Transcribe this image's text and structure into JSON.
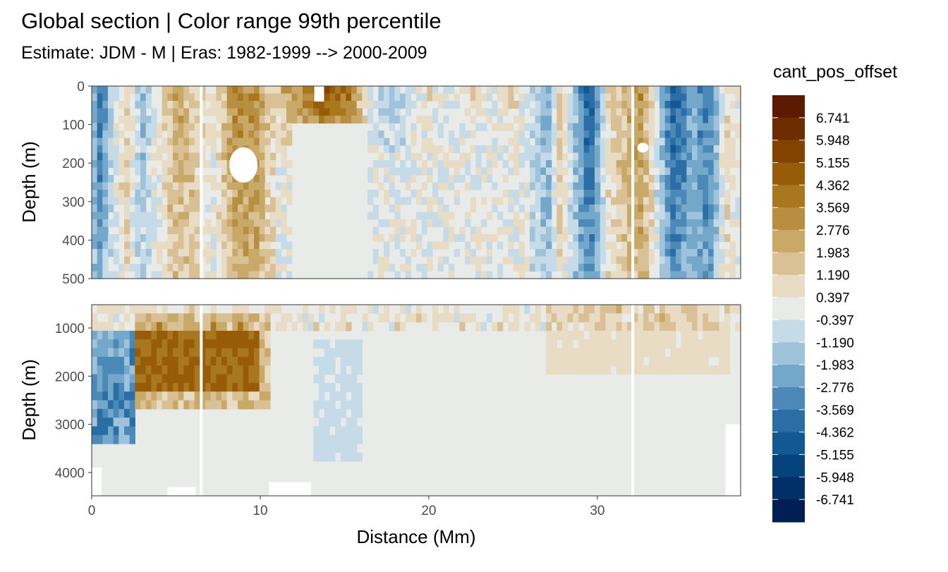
{
  "chart_data": {
    "type": "heatmap",
    "title": "Global section | Color range 99th percentile",
    "subtitle": "Estimate: JDM - M | Eras: 1982-1999 --> 2000-2009",
    "xlabel": "Distance (Mm)",
    "ylabel": "Depth (m)",
    "xlim": [
      0,
      38.5
    ],
    "x_ticks": [
      "0",
      "10",
      "20",
      "30"
    ],
    "grid": false,
    "panels": [
      {
        "ylim": [
          0,
          500
        ],
        "y_ticks": [
          "0",
          "100",
          "200",
          "300",
          "400",
          "500"
        ]
      },
      {
        "ylim": [
          500,
          4500
        ],
        "y_ticks": [
          "1000",
          "2000",
          "3000",
          "4000"
        ]
      }
    ],
    "legend": {
      "title": "cant_pos_offset",
      "position": "right",
      "breaks": [
        "6.741",
        "5.948",
        "5.155",
        "4.362",
        "3.569",
        "2.776",
        "1.983",
        "1.190",
        "0.397",
        "-0.397",
        "-1.190",
        "-1.983",
        "-2.776",
        "-3.569",
        "-4.362",
        "-5.155",
        "-5.948",
        "-6.741"
      ],
      "colors": [
        "#5c1a00",
        "#6e2d00",
        "#844200",
        "#975c08",
        "#a9781e",
        "#b88f40",
        "#c9a968",
        "#d9c195",
        "#e8dcc4",
        "#e9ebe8",
        "#c6dbe8",
        "#9fc3db",
        "#74a8ca",
        "#4b8ab8",
        "#2a6ea5",
        "#125892",
        "#06427c",
        "#022f68",
        "#011f55"
      ]
    }
  }
}
